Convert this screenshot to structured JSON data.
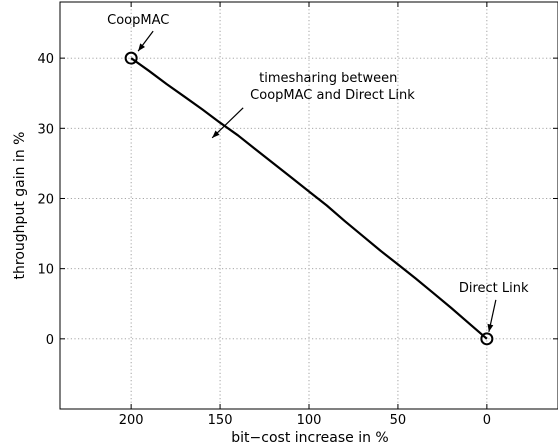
{
  "chart_data": {
    "type": "line",
    "title": "",
    "xlabel": "bit−cost increase in %",
    "ylabel": "throughput gain in %",
    "xlim": [
      240,
      -40
    ],
    "ylim": [
      -10,
      48
    ],
    "x_reversed": true,
    "grid": true,
    "xticks": [
      200,
      150,
      100,
      50,
      0
    ],
    "xtick_labels": [
      "200",
      "150",
      "100",
      "50",
      "0"
    ],
    "yticks": [
      0,
      10,
      20,
      30,
      40
    ],
    "ytick_labels": [
      "0",
      "10",
      "20",
      "30",
      "40"
    ],
    "series": [
      {
        "x": [
          200,
          190,
          180,
          170,
          160,
          150,
          140,
          130,
          120,
          110,
          100,
          90,
          80,
          70,
          60,
          50,
          40,
          30,
          20,
          10,
          0
        ],
        "y": [
          40,
          38.2,
          36.3,
          34.5,
          32.7,
          30.8,
          29.0,
          27.0,
          25.0,
          23.0,
          21.0,
          19.0,
          16.8,
          14.7,
          12.6,
          10.6,
          8.6,
          6.5,
          4.4,
          2.2,
          0
        ]
      }
    ],
    "markers": [
      {
        "x": 200,
        "y": 40,
        "shape": "circle"
      },
      {
        "x": 0,
        "y": 0,
        "shape": "circle"
      }
    ],
    "annotations": [
      {
        "text": "CoopMAC",
        "x": 200,
        "y": 40
      },
      {
        "text": "timesharing between",
        "x": 155,
        "y": 28.5
      },
      {
        "text": "CoopMAC and Direct Link",
        "x": 155,
        "y": 28.5
      },
      {
        "text": "Direct Link",
        "x": 0,
        "y": 0
      }
    ]
  }
}
